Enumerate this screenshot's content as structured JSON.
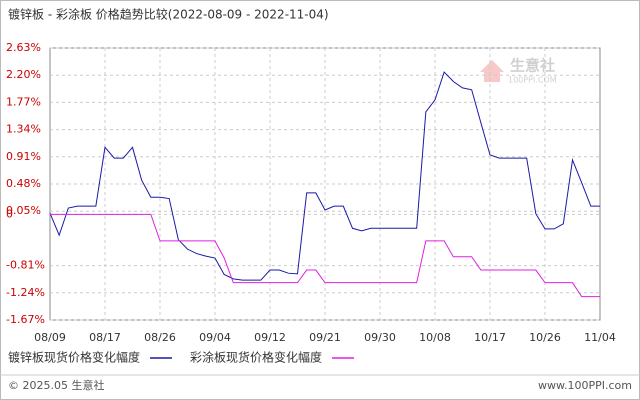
{
  "chart_data": {
    "type": "line",
    "title": "镀锌板 - 彩涂板 价格趋势比较(2022-08-09 - 2022-11-04)",
    "categories": [
      "08/09",
      null,
      null,
      null,
      null,
      null,
      "08/17",
      null,
      null,
      null,
      null,
      null,
      "08/26",
      null,
      null,
      null,
      null,
      null,
      "09/04",
      null,
      null,
      null,
      null,
      null,
      "09/12",
      null,
      null,
      null,
      null,
      null,
      "09/21",
      null,
      null,
      null,
      null,
      null,
      "09/30",
      null,
      null,
      null,
      null,
      null,
      "10/08",
      null,
      null,
      null,
      null,
      null,
      "10/17",
      null,
      null,
      null,
      null,
      null,
      "10/26",
      null,
      null,
      null,
      null,
      null,
      "11/04"
    ],
    "series": [
      {
        "name": "镀锌板现货价格变化幅度",
        "color": "#1a1aa6",
        "values": [
          0.02,
          -0.33,
          0.1,
          0.13,
          0.13,
          0.13,
          1.06,
          0.89,
          0.89,
          1.06,
          0.54,
          0.27,
          0.27,
          0.25,
          -0.4,
          -0.55,
          -0.62,
          -0.66,
          -0.69,
          -0.95,
          -1.02,
          -1.04,
          -1.04,
          -1.04,
          -0.88,
          -0.88,
          -0.93,
          -0.94,
          0.34,
          0.34,
          0.07,
          0.13,
          0.13,
          -0.22,
          -0.26,
          -0.22,
          -0.22,
          -0.22,
          -0.22,
          -0.22,
          -0.22,
          1.62,
          1.81,
          2.25,
          2.1,
          2.0,
          1.97,
          1.45,
          0.94,
          0.89,
          0.89,
          0.89,
          0.89,
          0.01,
          -0.23,
          -0.23,
          -0.15,
          0.86,
          0.5,
          0.13,
          0.13
        ]
      },
      {
        "name": "彩涂板现货价格变化幅度",
        "color": "#e020e0",
        "values": [
          0,
          0,
          0,
          0,
          0,
          0,
          0,
          0,
          0,
          0,
          0,
          0,
          -0.42,
          -0.42,
          -0.42,
          -0.42,
          -0.42,
          -0.42,
          -0.42,
          -0.69,
          -1.08,
          -1.08,
          -1.08,
          -1.08,
          -1.08,
          -1.08,
          -1.08,
          -1.08,
          -0.88,
          -0.88,
          -1.08,
          -1.08,
          -1.08,
          -1.08,
          -1.08,
          -1.08,
          -1.08,
          -1.08,
          -1.08,
          -1.08,
          -1.08,
          -0.42,
          -0.42,
          -0.42,
          -0.67,
          -0.67,
          -0.67,
          -0.88,
          -0.88,
          -0.88,
          -0.88,
          -0.88,
          -0.88,
          -0.88,
          -1.08,
          -1.08,
          -1.08,
          -1.08,
          -1.3,
          -1.3,
          -1.3
        ]
      }
    ],
    "ylim": [
      -1.67,
      2.63
    ],
    "yticks": [
      {
        "value": 2.63,
        "label": "2.63%"
      },
      {
        "value": 2.2,
        "label": "2.20%"
      },
      {
        "value": 1.77,
        "label": "1.77%"
      },
      {
        "value": 1.34,
        "label": "1.34%"
      },
      {
        "value": 0.91,
        "label": "0.91%"
      },
      {
        "value": 0.48,
        "label": "0.48%"
      },
      {
        "value": 0.05,
        "label": "0.05%"
      },
      0,
      {
        "value": -0.81,
        "label": "-0.81%"
      },
      {
        "value": -1.24,
        "label": "-1.24%"
      },
      {
        "value": -1.67,
        "label": "-1.67%"
      }
    ],
    "grid": true,
    "tick_color": "#cc0000",
    "watermark": {
      "name": "生意社",
      "site": "100PPI.COM"
    },
    "footer": {
      "copyright": "© 2025.05 生意社",
      "site": "www.100PPI.com"
    }
  }
}
